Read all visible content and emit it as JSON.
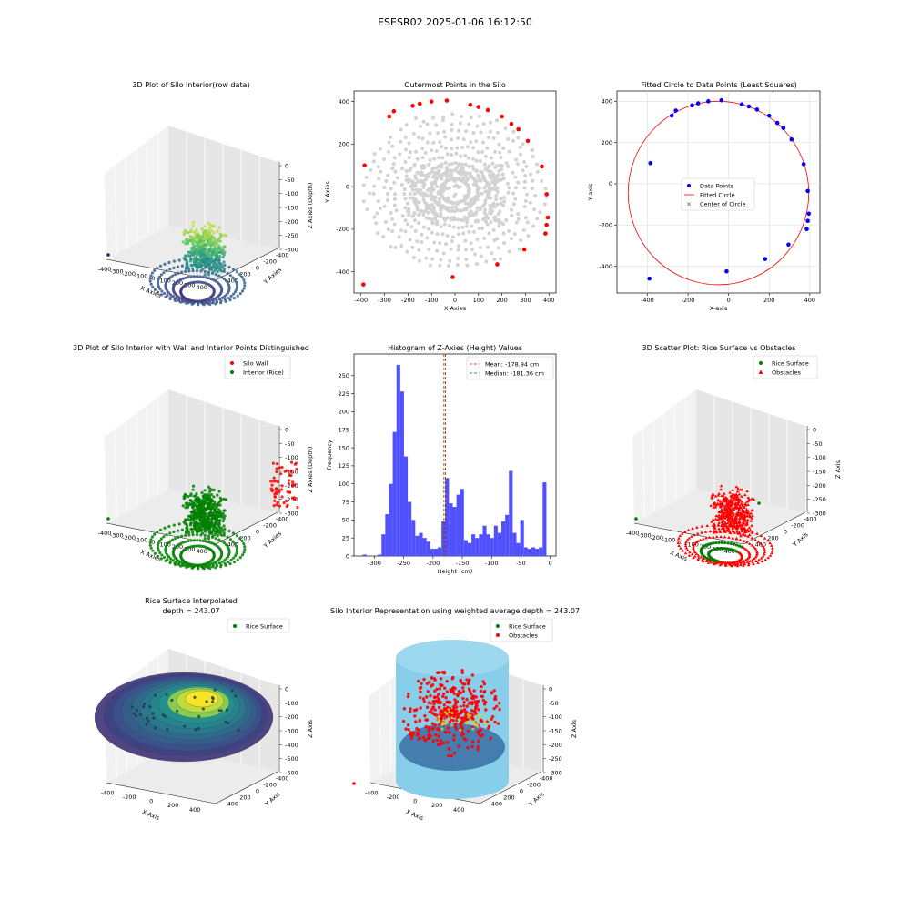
{
  "figure": {
    "suptitle": "ESESR02 2025-01-06 16:12:50"
  },
  "colors": {
    "blue": "#0000ff",
    "red": "#ff0000",
    "green": "#008000",
    "grey": "#d3d3d3",
    "hist": "#5050ff",
    "cyl": "#87ceeb",
    "mean_line": "#ff0000",
    "median_line": "#008000"
  },
  "chart_data": [
    {
      "id": "p1",
      "type": "scatter3d",
      "title": "3D Plot of Silo Interior(row data)",
      "xlabel": "X Axies",
      "ylabel": "Y Axies",
      "zlabel": "Z Axies (Depth)",
      "xticks": [
        "-400",
        "-300",
        "-200",
        "-100",
        "0",
        "100",
        "200",
        "300",
        "400"
      ],
      "yticks": [
        "-400",
        "-200",
        "0",
        "200",
        "400"
      ],
      "zticks": [
        "0",
        "-50",
        "-100",
        "-150",
        "-200",
        "-250",
        "-300"
      ],
      "xlim": [
        -400,
        400
      ],
      "ylim": [
        -400,
        400
      ],
      "zlim": [
        -320,
        0
      ],
      "colormap": "viridis"
    },
    {
      "id": "p2",
      "type": "scatter",
      "title": "Outermost Points in the Silo",
      "xlabel": "X Axies",
      "ylabel": "Y Axies",
      "xlim": [
        -430,
        430
      ],
      "ylim": [
        -500,
        450
      ],
      "xticks": [
        -400,
        -300,
        -200,
        -100,
        0,
        100,
        200,
        300,
        400
      ],
      "yticks": [
        -400,
        -200,
        0,
        200,
        400
      ],
      "outer_points": [
        [
          -390,
          -460
        ],
        [
          -10,
          -425
        ],
        [
          180,
          -365
        ],
        [
          295,
          -295
        ],
        [
          385,
          -220
        ],
        [
          390,
          -180
        ],
        [
          395,
          -145
        ],
        [
          390,
          -35
        ],
        [
          370,
          95
        ],
        [
          310,
          215
        ],
        [
          270,
          270
        ],
        [
          240,
          295
        ],
        [
          200,
          330
        ],
        [
          140,
          360
        ],
        [
          100,
          375
        ],
        [
          65,
          385
        ],
        [
          -35,
          405
        ],
        [
          -100,
          400
        ],
        [
          -150,
          390
        ],
        [
          -180,
          380
        ],
        [
          -260,
          355
        ],
        [
          -280,
          330
        ],
        [
          -385,
          100
        ]
      ]
    },
    {
      "id": "p3",
      "type": "scatter",
      "title": "Fitted Circle to Data Points (Least Squares)",
      "xlabel": "X-axis",
      "ylabel": "Y-axis",
      "xlim": [
        -550,
        450
      ],
      "ylim": [
        -530,
        450
      ],
      "xticks": [
        -400,
        -200,
        0,
        200,
        400
      ],
      "yticks": [
        -400,
        -200,
        0,
        200,
        400
      ],
      "grid": true,
      "points": [
        [
          -390,
          -460
        ],
        [
          -10,
          -425
        ],
        [
          180,
          -365
        ],
        [
          295,
          -295
        ],
        [
          385,
          -220
        ],
        [
          390,
          -180
        ],
        [
          395,
          -145
        ],
        [
          390,
          -35
        ],
        [
          370,
          95
        ],
        [
          310,
          215
        ],
        [
          270,
          270
        ],
        [
          240,
          295
        ],
        [
          200,
          330
        ],
        [
          140,
          360
        ],
        [
          100,
          375
        ],
        [
          65,
          385
        ],
        [
          -35,
          405
        ],
        [
          -100,
          400
        ],
        [
          -150,
          390
        ],
        [
          -180,
          380
        ],
        [
          -260,
          355
        ],
        [
          -280,
          330
        ],
        [
          -385,
          100
        ]
      ],
      "circle": {
        "cx": -50,
        "cy": -45,
        "r": 445
      },
      "legend": [
        "Data Points",
        "Fitted Circle",
        "Center of Circle"
      ],
      "legend_position": "center"
    },
    {
      "id": "p4",
      "type": "scatter3d",
      "title": "3D Plot of Silo Interior with Wall and Interior Points Distinguished",
      "xlabel": "X Axies",
      "ylabel": "Y Axies",
      "zlabel": "Z Axies (Depth)",
      "xticks": [
        "-400",
        "-300",
        "-200",
        "-100",
        "0",
        "100",
        "200",
        "300",
        "400"
      ],
      "yticks": [
        "-400",
        "-200",
        "0",
        "200",
        "400"
      ],
      "zticks": [
        "0",
        "-50",
        "-100",
        "-150",
        "-200",
        "-250",
        "-300"
      ],
      "legend": [
        "Silo Wall",
        "Interior (Rice)"
      ],
      "legend_position": "top-right"
    },
    {
      "id": "p5",
      "type": "histogram",
      "title": "Histogram of Z-Axies (Height) Values",
      "xlabel": "Height (cm)",
      "ylabel": "Frequency",
      "xlim": [
        -335,
        10
      ],
      "ylim": [
        0,
        280
      ],
      "xticks": [
        -300,
        -250,
        -200,
        -150,
        -100,
        -50,
        0
      ],
      "yticks": [
        0,
        25,
        50,
        75,
        100,
        125,
        150,
        175,
        200,
        225,
        250
      ],
      "bin_start": -320,
      "bin_width": 6.4,
      "counts": [
        2,
        0,
        0,
        0,
        2,
        30,
        58,
        100,
        172,
        265,
        228,
        138,
        75,
        50,
        28,
        32,
        25,
        20,
        10,
        10,
        12,
        48,
        108,
        73,
        68,
        85,
        93,
        22,
        18,
        30,
        25,
        30,
        42,
        30,
        25,
        42,
        32,
        48,
        57,
        118,
        32,
        18,
        50,
        12,
        10,
        12,
        10,
        12,
        102
      ],
      "mean": -178.94,
      "median": -181.36,
      "legend": [
        "Mean: -178.94 cm",
        "Median: -181.36 cm"
      ],
      "legend_position": "top-right"
    },
    {
      "id": "p6",
      "type": "scatter3d",
      "title": "3D Scatter Plot: Rice Surface vs Obstacles",
      "xlabel": "X Axis",
      "ylabel": "Y Axis",
      "zlabel": "Z Axis",
      "xticks": [
        "-400",
        "-300",
        "-200",
        "-100",
        "0",
        "100",
        "200",
        "300",
        "400"
      ],
      "yticks": [
        "-400",
        "-200",
        "0",
        "200",
        "400"
      ],
      "zticks": [
        "0",
        "-50",
        "-100",
        "-150",
        "-200",
        "-250",
        "-300"
      ],
      "legend": [
        "Rice Surface",
        "Obstacles"
      ],
      "legend_position": "top-right"
    },
    {
      "id": "p7",
      "type": "surface3d",
      "title": "Rice Surface Interpolated",
      "subtitle": "depth = 243.07",
      "xlabel": "X Axis",
      "ylabel": "Y Axis",
      "zlabel": "Z Axis",
      "xticks": [
        "-400",
        "-200",
        "0",
        "200",
        "400"
      ],
      "yticks": [
        "-400",
        "-200",
        "0",
        "200",
        "400"
      ],
      "zticks": [
        "0",
        "-100",
        "-200",
        "-300",
        "-400",
        "-500",
        "-600"
      ],
      "legend": [
        "Rice Surface"
      ],
      "legend_position": "top-right"
    },
    {
      "id": "p8",
      "type": "scatter3d",
      "title": "Silo Interior Representation using weighted average depth = 243.07",
      "xlabel": "X Axis",
      "ylabel": "Y Axis",
      "zlabel": "Z Axis",
      "xticks": [
        "-400",
        "-200",
        "0",
        "200",
        "400"
      ],
      "yticks": [
        "-400",
        "-200",
        "0",
        "200",
        "400"
      ],
      "zticks": [
        "0",
        "-50",
        "-100",
        "-150",
        "-200",
        "-250",
        "-300"
      ],
      "legend": [
        "Rice Surface",
        "Obstacles"
      ],
      "legend_position": "top-right"
    }
  ]
}
